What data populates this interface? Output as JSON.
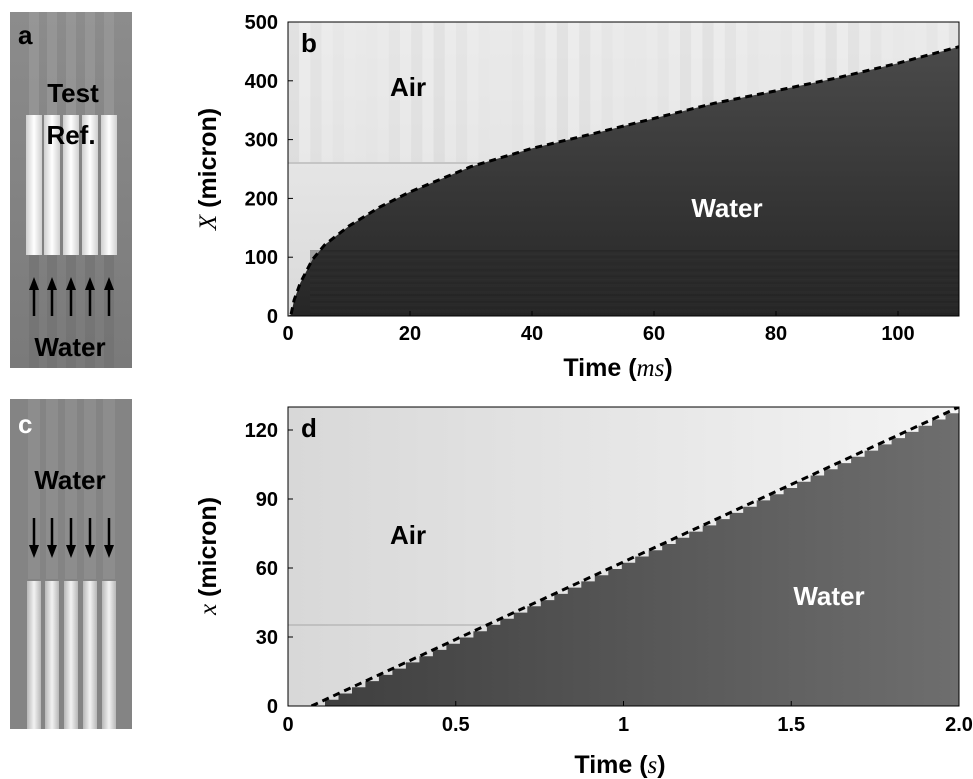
{
  "panels": {
    "a": {
      "letter": "a",
      "test_label": "Test",
      "ref_label": "Ref.",
      "fluid_label": "Water"
    },
    "c": {
      "letter": "c",
      "fluid_label": "Water"
    }
  },
  "chart_data": [
    {
      "panel": "b",
      "type": "heatmap",
      "letter": "b",
      "xlabel_text": "Time (",
      "xlabel_unit": "ms",
      "xlabel_close": ")",
      "ylabel_symbol": "X",
      "ylabel_text": " (micron)",
      "xlim": [
        0,
        110
      ],
      "ylim": [
        0,
        500
      ],
      "xticks": [
        0,
        20,
        40,
        60,
        80,
        100
      ],
      "yticks": [
        0,
        100,
        200,
        300,
        400,
        500
      ],
      "region_labels": {
        "air": "Air",
        "water": "Water"
      },
      "boundary_fit": {
        "style": "dashed",
        "x": [
          0.5,
          1,
          2,
          4,
          6,
          10,
          15,
          20,
          30,
          40,
          50,
          60,
          70,
          80,
          90,
          100,
          110
        ],
        "y": [
          3,
          27,
          56,
          96,
          121,
          153,
          185,
          211,
          254,
          285,
          310,
          336,
          362,
          383,
          405,
          430,
          458
        ]
      },
      "colors": {
        "air": "#e4e4e4",
        "water": "#3a3a3a",
        "fit": "#000000"
      }
    },
    {
      "panel": "d",
      "type": "heatmap",
      "letter": "d",
      "xlabel_text": "Time (",
      "xlabel_unit": "s",
      "xlabel_close": ")",
      "ylabel_symbol": "x",
      "ylabel_text": " (micron)",
      "xlim": [
        0,
        2.0
      ],
      "ylim": [
        0,
        130
      ],
      "xticks": [
        0,
        0.5,
        1,
        1.5,
        2.0
      ],
      "xtick_labels": [
        "0",
        "0.5",
        "1",
        "1.5",
        "2.0"
      ],
      "yticks": [
        0,
        30,
        60,
        90,
        120
      ],
      "region_labels": {
        "air": "Air",
        "water": "Water"
      },
      "boundary_fit": {
        "style": "dashed",
        "x": [
          0.07,
          2.0
        ],
        "y": [
          0,
          130
        ]
      },
      "colors": {
        "air": "#e8e8e8",
        "water": "#565656",
        "fit": "#000000"
      }
    }
  ]
}
